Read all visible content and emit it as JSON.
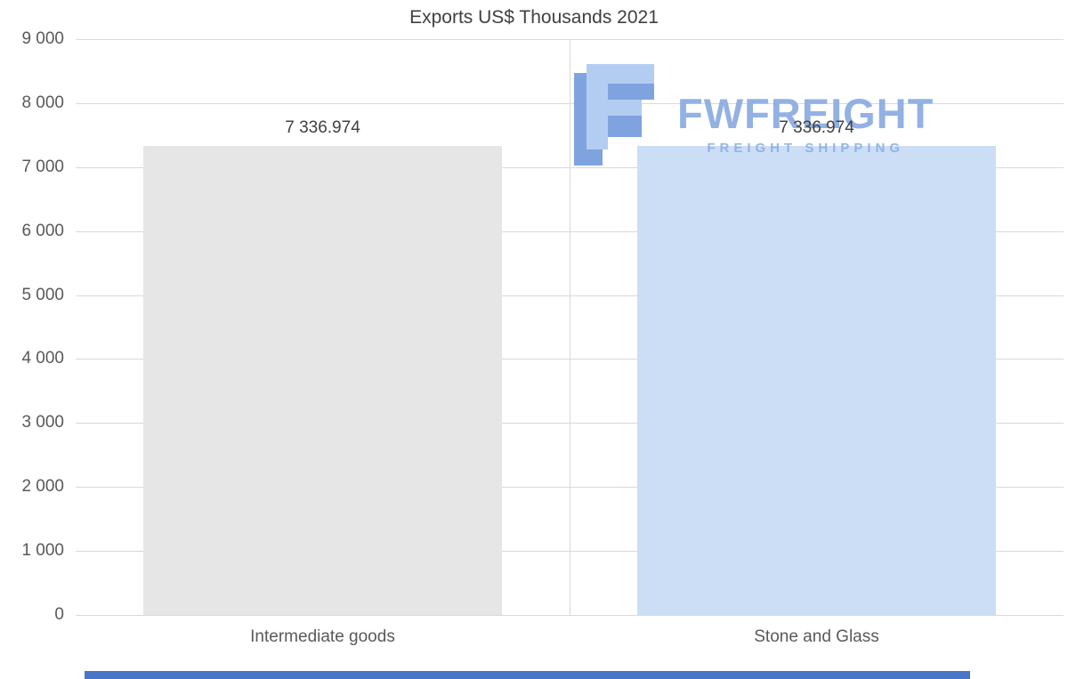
{
  "chart_data": {
    "type": "bar",
    "title": "Exports US$ Thousands 2021",
    "categories": [
      "Intermediate goods",
      "Stone and Glass"
    ],
    "values": [
      7336.974,
      7336.974
    ],
    "value_labels": [
      "7 336.974",
      "7 336.974"
    ],
    "ylim": [
      0,
      9000
    ],
    "ytick_step": 1000,
    "ytick_labels": [
      "9 000",
      "8 000",
      "7 000",
      "6 000",
      "5 000",
      "4 000",
      "3 000",
      "2 000",
      "1 000",
      "0"
    ],
    "grid": true,
    "legend": "none",
    "bar_colors": [
      "#e6e6e6",
      "#cbdef6"
    ],
    "xlabel": "",
    "ylabel": ""
  },
  "watermark": {
    "brand": "FWFREIGHT",
    "tagline": "FREIGHT SHIPPING",
    "color": "#8aabe0"
  },
  "colors": {
    "gridline": "#d9d9d9",
    "title_text": "#404040",
    "axis_text": "#595959",
    "footer_strip": "#4a76c8",
    "background": "#ffffff"
  }
}
